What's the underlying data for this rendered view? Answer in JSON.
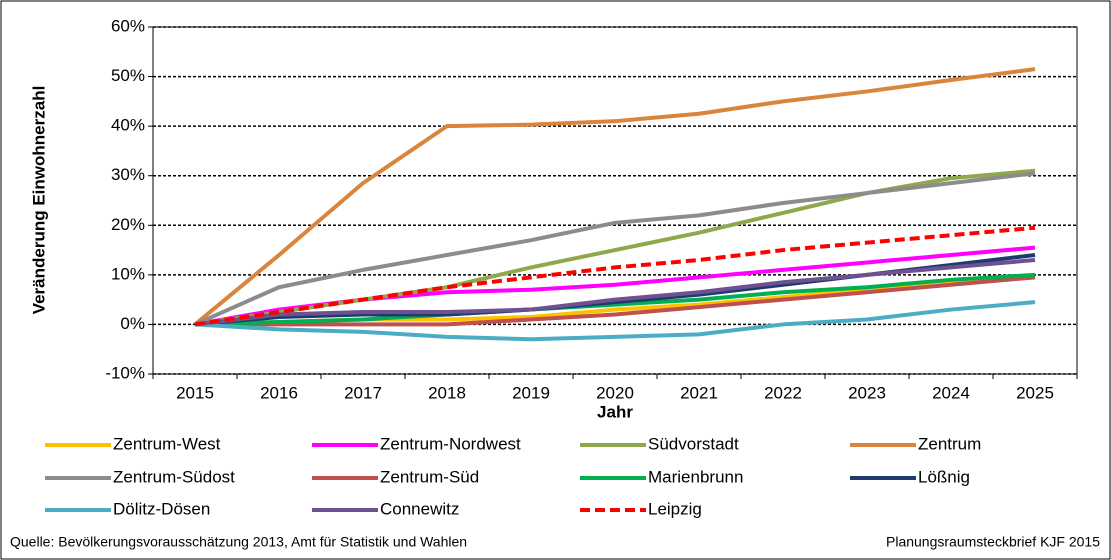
{
  "chart_data": {
    "type": "line",
    "y_label": "Veränderung Einwohnerzahl",
    "x_label": "Jahr",
    "categories": [
      "2015",
      "2016",
      "2017",
      "2018",
      "2019",
      "2020",
      "2021",
      "2022",
      "2023",
      "2024",
      "2025"
    ],
    "ylim": [
      -10,
      60
    ],
    "yticks": [
      {
        "value": -10,
        "label": "-10%"
      },
      {
        "value": 0,
        "label": "0%"
      },
      {
        "value": 10,
        "label": "10%"
      },
      {
        "value": 20,
        "label": "20%"
      },
      {
        "value": 30,
        "label": "30%"
      },
      {
        "value": 40,
        "label": "40%"
      },
      {
        "value": 50,
        "label": "50%"
      },
      {
        "value": 60,
        "label": "60%"
      }
    ],
    "grid": true,
    "series": [
      {
        "name": "Zentrum-West",
        "color": "#ffc000",
        "values": [
          0,
          0.5,
          1,
          1,
          1.5,
          3,
          4,
          5.5,
          7,
          8.5,
          9.5
        ]
      },
      {
        "name": "Zentrum-Nordwest",
        "color": "#ff00ff",
        "values": [
          0,
          3,
          5,
          6.5,
          7,
          8,
          9.5,
          11,
          12.5,
          14,
          15.5
        ]
      },
      {
        "name": "Südvorstadt",
        "color": "#8fa84a",
        "values": [
          0,
          2.5,
          5,
          7.5,
          11.5,
          15,
          18.5,
          22.5,
          26.5,
          29.5,
          31
        ]
      },
      {
        "name": "Zentrum",
        "color": "#d9853b",
        "values": [
          0,
          14,
          28.5,
          40,
          40.3,
          41,
          42.5,
          45,
          47,
          49.3,
          51.5
        ]
      },
      {
        "name": "Zentrum-Südost",
        "color": "#8c8c8c",
        "values": [
          0,
          7.5,
          11,
          14,
          17,
          20.5,
          22,
          24.5,
          26.5,
          28.5,
          30.5
        ]
      },
      {
        "name": "Zentrum-Süd",
        "color": "#c0504d",
        "values": [
          0,
          0,
          0,
          0,
          1,
          2,
          3.5,
          5,
          6.5,
          8,
          9.5
        ]
      },
      {
        "name": "Marienbrunn",
        "color": "#00b050",
        "values": [
          0,
          0.5,
          1,
          2,
          3,
          4,
          5,
          6.5,
          7.5,
          9,
          10
        ]
      },
      {
        "name": "Lößnig",
        "color": "#1f3b6e",
        "values": [
          0,
          1.5,
          2,
          2,
          3,
          4.5,
          6,
          8,
          10,
          12,
          14
        ]
      },
      {
        "name": "Dölitz-Dösen",
        "color": "#4bacc6",
        "values": [
          0,
          -1,
          -1.5,
          -2.5,
          -3,
          -2.5,
          -2,
          0,
          1,
          3,
          4.5
        ]
      },
      {
        "name": "Connewitz",
        "color": "#6e5190",
        "values": [
          0,
          2,
          2.5,
          2.5,
          3,
          5,
          6.5,
          8.5,
          10,
          11.5,
          13
        ]
      },
      {
        "name": "Leipzig",
        "color": "#ff0000",
        "dashed": true,
        "values": [
          0,
          2.5,
          5,
          7.5,
          9.5,
          11.5,
          13,
          15,
          16.5,
          18,
          19.5
        ]
      }
    ],
    "source": "Quelle:  Bevölkerungsvorausschätzung 2013, Amt für Statistik und Wahlen",
    "credit": "Planungsraumsteckbrief KJF 2015"
  }
}
